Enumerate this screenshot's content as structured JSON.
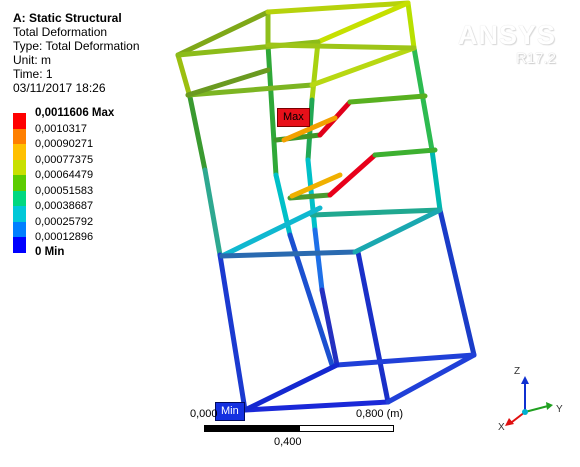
{
  "info": {
    "title": "A: Static Structural",
    "result": "Total Deformation",
    "type": "Type: Total Deformation",
    "unit": "Unit: m",
    "time": "Time: 1",
    "timestamp": "03/11/2017 18:26"
  },
  "legend": {
    "max_label": "0,0011606 Max",
    "min_label": "0 Min",
    "levels": [
      "0,0010317",
      "0,00090271",
      "0,00077375",
      "0,00064479",
      "0,00051583",
      "0,00038687",
      "0,00025792",
      "0,00012896"
    ],
    "colors": [
      "#ff0000",
      "#ff7f00",
      "#ffc000",
      "#c8e000",
      "#5ccc00",
      "#00d880",
      "#00c8d8",
      "#007fff",
      "#0000ff"
    ]
  },
  "brand": {
    "name": "ANSYS",
    "version": "R17.2"
  },
  "probes": {
    "max": "Max",
    "min": "Min"
  },
  "scale": {
    "left": "0,000",
    "right": "0,800 (m)",
    "mid": "0,400"
  },
  "triad": {
    "z": "Z",
    "y": "Y",
    "x": "X"
  }
}
